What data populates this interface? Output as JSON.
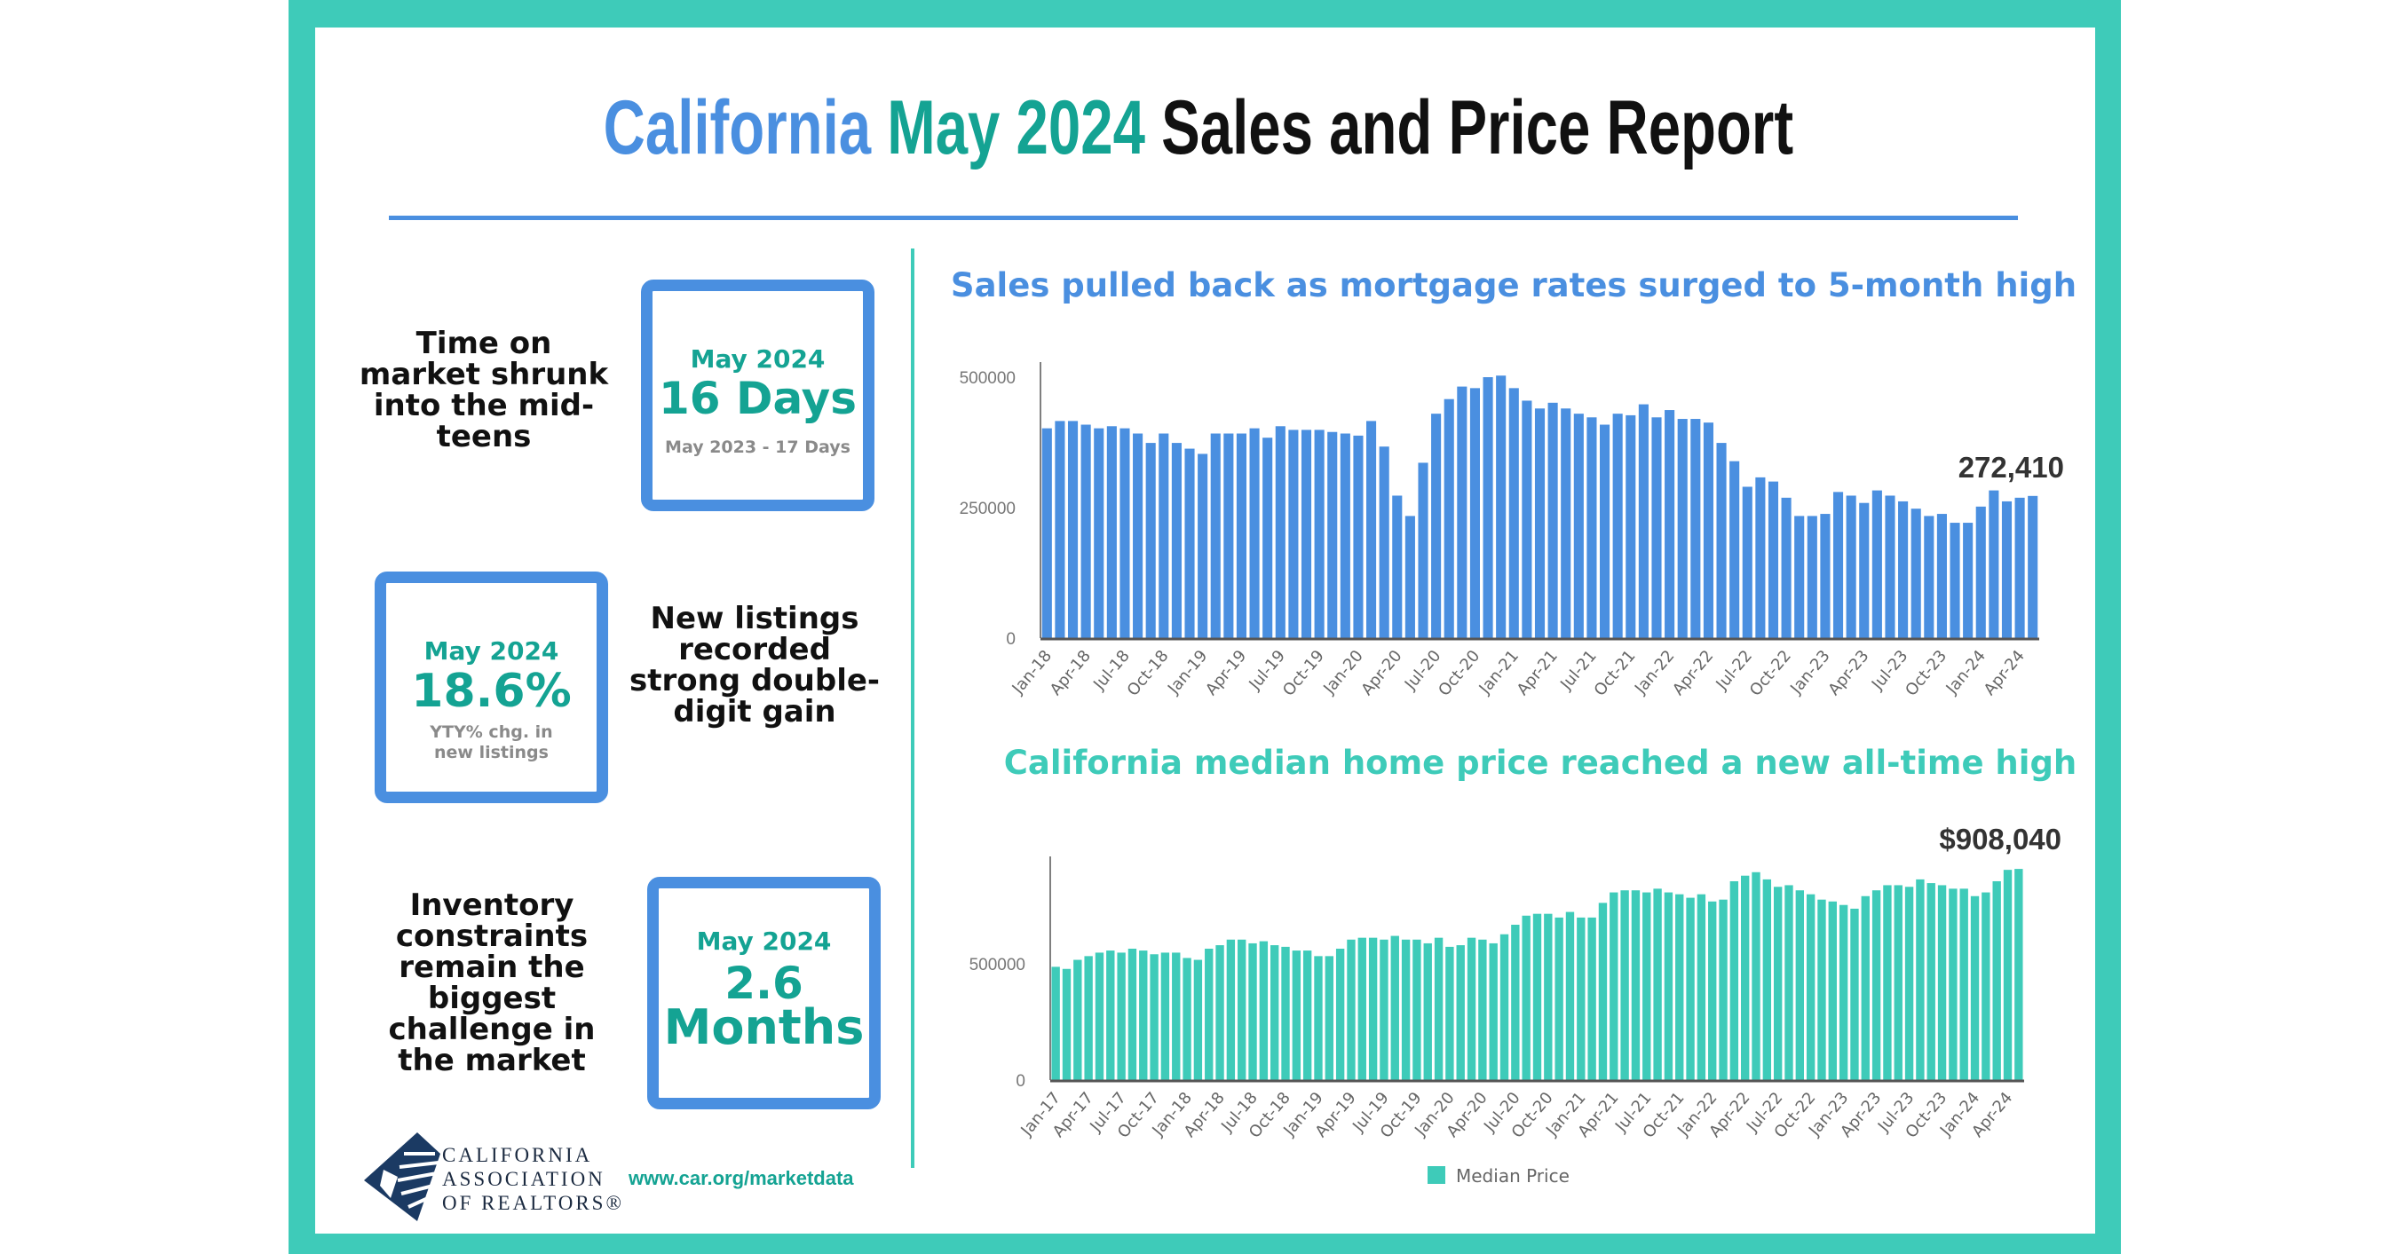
{
  "header": {
    "title_part1": "California",
    "title_part2": "May 2024",
    "title_part3": "Sales and Price Report"
  },
  "colors": {
    "blue": "#4a8fe0",
    "teal": "#3ecbb9",
    "teal_dark": "#14a393",
    "text": "#111111"
  },
  "stats": [
    {
      "claim": "Time on market shrunk into the mid-teens",
      "period": "May 2024",
      "value": "16 Days",
      "sub": "May 2023 - 17 Days"
    },
    {
      "claim": "New listings recorded strong double-digit gain",
      "period": "May 2024",
      "value": "18.6%",
      "sub": "YTY% chg. in new listings"
    },
    {
      "claim": "Inventory constraints remain the biggest challenge in the market",
      "period": "May 2024",
      "value_line1": "2.6",
      "value_line2": "Months"
    }
  ],
  "footer": {
    "logo_line1": "CALIFORNIA",
    "logo_line2": "ASSOCIATION",
    "logo_line3": "OF REALTORS®",
    "url": "www.car.org/marketdata"
  },
  "chart_data": [
    {
      "type": "bar",
      "title": "Sales pulled back as mortgage rates surged to 5-month high",
      "x_start": "Jan-18",
      "x_end": "May-24",
      "tick_labels": [
        "Jan-18",
        "Apr-18",
        "Jul-18",
        "Oct-18",
        "Jan-19",
        "Apr-19",
        "Jul-19",
        "Oct-19",
        "Jan-20",
        "Apr-20",
        "Jul-20",
        "Oct-20",
        "Jan-21",
        "Apr-21",
        "Jul-21",
        "Oct-21",
        "Jan-22",
        "Apr-22",
        "Jul-22",
        "Oct-22",
        "Jan-23",
        "Apr-23",
        "Jul-23",
        "Oct-23",
        "Jan-24",
        "Apr-24"
      ],
      "y_ticks": [
        "0",
        "250000",
        "500000"
      ],
      "ylim": [
        0,
        520000
      ],
      "color": "#4a8fe0",
      "annotation": "272,410",
      "values": [
        402000,
        416000,
        416000,
        409000,
        402000,
        406000,
        402000,
        392000,
        374000,
        392000,
        374000,
        363000,
        353000,
        392000,
        392000,
        392000,
        402000,
        384000,
        406000,
        399000,
        399000,
        399000,
        395000,
        392000,
        388000,
        416000,
        367000,
        273000,
        234000,
        336000,
        430000,
        458000,
        482000,
        479000,
        500000,
        503000,
        479000,
        455000,
        440000,
        451000,
        440000,
        430000,
        423000,
        409000,
        430000,
        427000,
        448000,
        423000,
        437000,
        420000,
        420000,
        413000,
        374000,
        339000,
        290000,
        308000,
        300000,
        269000,
        234000,
        234000,
        238000,
        280000,
        273000,
        259000,
        283000,
        273000,
        262000,
        248000,
        234000,
        238000,
        221000,
        221000,
        252000,
        283000,
        262000,
        269000,
        272410
      ]
    },
    {
      "type": "bar",
      "title": "California median home price reached a new all-time high",
      "x_start": "Jan-17",
      "x_end": "May-24",
      "tick_labels": [
        "Jan-17",
        "Apr-17",
        "Jul-17",
        "Oct-17",
        "Jan-18",
        "Apr-18",
        "Jul-18",
        "Oct-18",
        "Jan-19",
        "Apr-19",
        "Jul-19",
        "Oct-19",
        "Jan-20",
        "Apr-20",
        "Jul-20",
        "Oct-20",
        "Jan-21",
        "Apr-21",
        "Jul-21",
        "Oct-21",
        "Jan-22",
        "Apr-22",
        "Jul-22",
        "Oct-22",
        "Jan-23",
        "Apr-23",
        "Jul-23",
        "Oct-23",
        "Jan-24",
        "Apr-24"
      ],
      "y_ticks": [
        "0",
        "500000"
      ],
      "ylim": [
        0,
        950000
      ],
      "color": "#3ecbb9",
      "legend": "Median Price",
      "legend_position": "bottom",
      "annotation": "$908,040",
      "series": [
        {
          "name": "Median Price",
          "values": [
            487000,
            478000,
            517000,
            533000,
            548000,
            557000,
            548000,
            565000,
            557000,
            541000,
            548000,
            548000,
            525000,
            517000,
            565000,
            580000,
            604000,
            604000,
            588000,
            597000,
            580000,
            573000,
            557000,
            557000,
            533000,
            533000,
            565000,
            604000,
            612000,
            612000,
            604000,
            620000,
            604000,
            604000,
            588000,
            612000,
            573000,
            580000,
            612000,
            604000,
            588000,
            627000,
            668000,
            707000,
            715000,
            715000,
            699000,
            723000,
            699000,
            699000,
            762000,
            807000,
            816000,
            816000,
            807000,
            823000,
            807000,
            799000,
            784000,
            799000,
            768000,
            776000,
            855000,
            879000,
            894000,
            863000,
            831000,
            838000,
            816000,
            799000,
            776000,
            768000,
            753000,
            737000,
            791000,
            816000,
            838000,
            838000,
            831000,
            863000,
            847000,
            838000,
            823000,
            823000,
            791000,
            807000,
            855000,
            904000,
            908040
          ]
        }
      ]
    }
  ]
}
